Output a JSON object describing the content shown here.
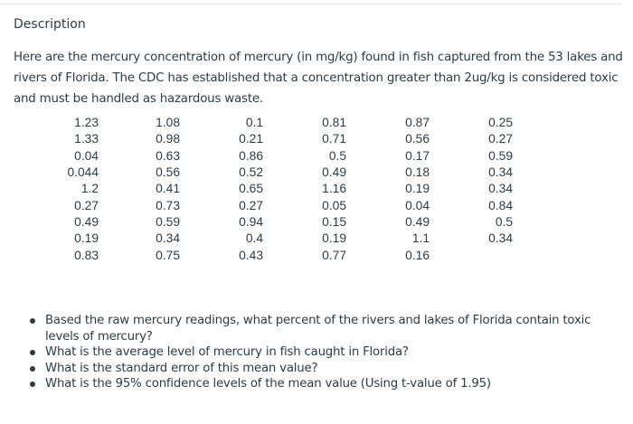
{
  "heading": "Description",
  "paragraph": "Here are the mercury concentration of mercury (in mg/kg) found in fish captured from the 53 lakes and rivers of Florida. The CDC has established that a concentration greater than 2ug/kg is considered toxic and must be handled as hazardous waste.",
  "table": {
    "rows": [
      [
        "1.23",
        "1.08",
        "0.1",
        "0.81",
        "0.87",
        "0.25"
      ],
      [
        "1.33",
        "0.98",
        "0.21",
        "0.71",
        "0.56",
        "0.27"
      ],
      [
        "0.04",
        "0.63",
        "0.86",
        "0.5",
        "0.17",
        "0.59"
      ],
      [
        "0.044",
        "0.56",
        "0.52",
        "0.49",
        "0.18",
        "0.34"
      ],
      [
        "1.2",
        "0.41",
        "0.65",
        "1.16",
        "0.19",
        "0.34"
      ],
      [
        "0.27",
        "0.73",
        "0.27",
        "0.05",
        "0.04",
        "0.84"
      ],
      [
        "0.49",
        "0.59",
        "0.94",
        "0.15",
        "0.49",
        "0.5"
      ],
      [
        "0.19",
        "0.34",
        "0.4",
        "0.19",
        "1.1",
        "0.34"
      ],
      [
        "0.83",
        "0.75",
        "0.43",
        "0.77",
        "0.16",
        ""
      ]
    ]
  },
  "questions": [
    "Based the raw mercury readings, what percent of the rivers and lakes of Florida contain toxic levels of mercury?",
    "What is the average level of mercury in fish caught in Florida?",
    "What is the standard error of this mean value?",
    "What is the 95% confidence levels of the mean value (Using t-value of 1.95)"
  ]
}
